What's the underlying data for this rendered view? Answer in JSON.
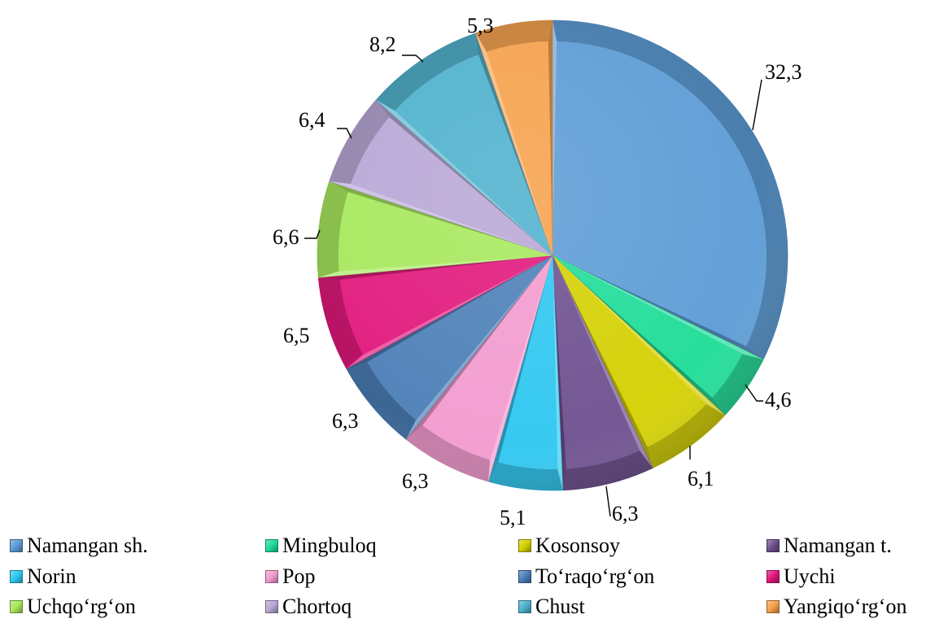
{
  "chart_data": {
    "type": "pie",
    "title": "",
    "legend_position": "bottom",
    "slices": [
      {
        "name": "Namangan sh.",
        "value": 32.3,
        "label": "32,3",
        "color": "#5B9BD5"
      },
      {
        "name": "Mingbuloq",
        "value": 4.6,
        "label": "4,6",
        "color": "#1DDC97"
      },
      {
        "name": "Kosonsoy",
        "value": 6.1,
        "label": "6,1",
        "color": "#D4D000"
      },
      {
        "name": "Namangan t.",
        "value": 6.3,
        "label": "6,3",
        "color": "#6D4E8E"
      },
      {
        "name": "Norin",
        "value": 5.1,
        "label": "5,1",
        "color": "#2CC6F0"
      },
      {
        "name": "Pop",
        "value": 6.3,
        "label": "6,3",
        "color": "#F29ACF"
      },
      {
        "name": "To‘raqo‘rg‘on",
        "value": 6.3,
        "label": "6,3",
        "color": "#4A7DB6"
      },
      {
        "name": "Uychi",
        "value": 6.5,
        "label": "6,5",
        "color": "#E0147A"
      },
      {
        "name": "Uchqo‘rg‘on",
        "value": 6.6,
        "label": "6,6",
        "color": "#A6E85A"
      },
      {
        "name": "Chortoq",
        "value": 6.4,
        "label": "6,4",
        "color": "#B7A6D6"
      },
      {
        "name": "Chust",
        "value": 8.2,
        "label": "8,2",
        "color": "#4CB0CC"
      },
      {
        "name": "Yangiqo‘rg‘on",
        "value": 5.3,
        "label": "5,3",
        "color": "#F5A04A"
      }
    ]
  }
}
